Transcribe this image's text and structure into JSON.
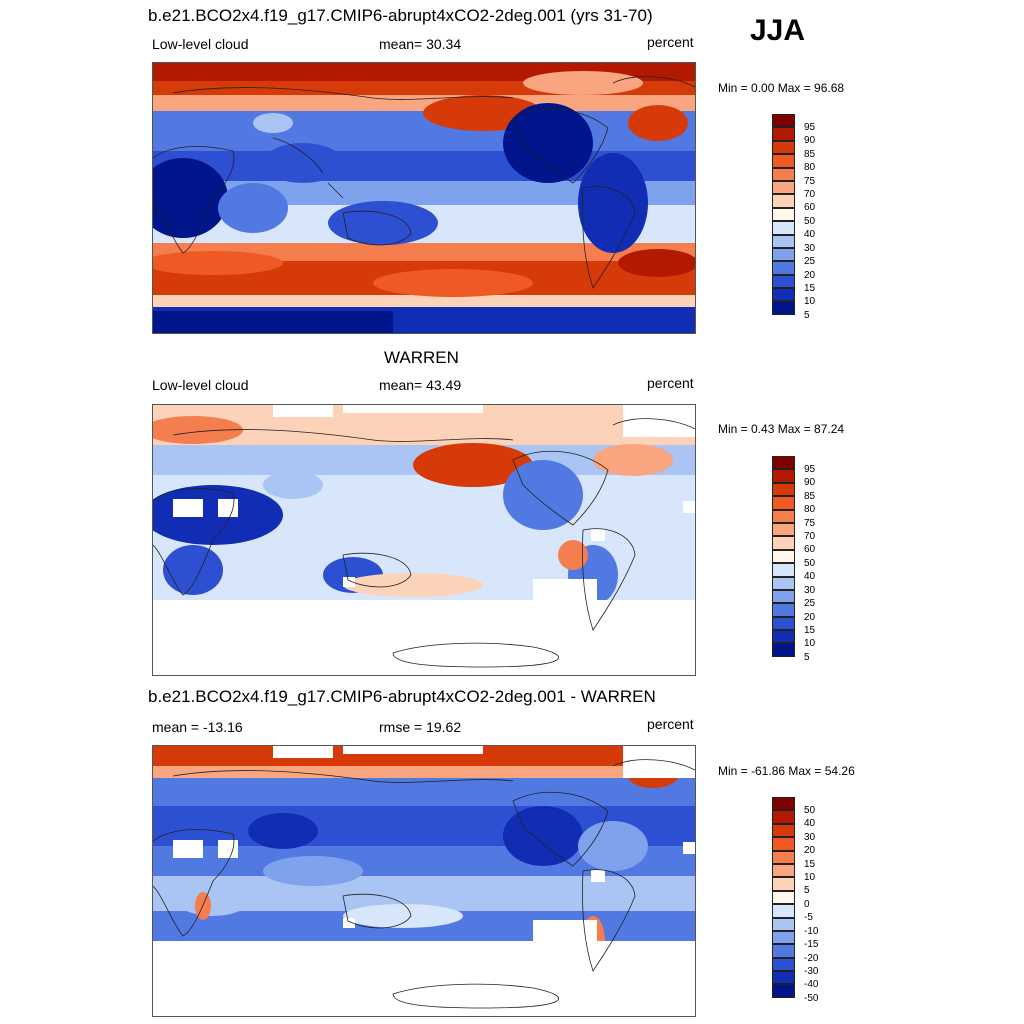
{
  "season": "JJA",
  "panels": [
    {
      "id": "model",
      "title": "b.e21.BCO2x4.f19_g17.CMIP6-abrupt4xCO2-2deg.001 (yrs 31-70)",
      "left_label": "Low-level cloud",
      "center_label": "mean=  30.34",
      "right_label": "percent",
      "minmax": "Min =   0.00 Max =  96.68",
      "colorbar_levels": [
        "95",
        "90",
        "85",
        "80",
        "75",
        "70",
        "60",
        "50",
        "40",
        "30",
        "25",
        "20",
        "15",
        "10",
        "5"
      ]
    },
    {
      "id": "obs",
      "title": "WARREN",
      "left_label": "Low-level cloud",
      "center_label": "mean=  43.49",
      "right_label": "percent",
      "minmax": "Min =   0.43 Max =  87.24",
      "colorbar_levels": [
        "95",
        "90",
        "85",
        "80",
        "75",
        "70",
        "60",
        "50",
        "40",
        "30",
        "25",
        "20",
        "15",
        "10",
        "5"
      ]
    },
    {
      "id": "diff",
      "title": "b.e21.BCO2x4.f19_g17.CMIP6-abrupt4xCO2-2deg.001 - WARREN",
      "left_label": "mean = -13.16",
      "center_label": "rmse =  19.62",
      "right_label": "percent",
      "minmax": "Min = -61.86 Max =  54.26",
      "colorbar_levels": [
        "50",
        "40",
        "30",
        "20",
        "15",
        "10",
        "5",
        "0",
        "-5",
        "-10",
        "-15",
        "-20",
        "-30",
        "-40",
        "-50"
      ]
    }
  ],
  "colors": {
    "palette": [
      "#7f0000",
      "#b21900",
      "#d63a08",
      "#ef5a24",
      "#f57e4f",
      "#f9a57f",
      "#fcd3b8",
      "#fff7ec",
      "#d7e6fa",
      "#aac5f3",
      "#7ea2ec",
      "#5278e2",
      "#2d50d2",
      "#102db3",
      "#00148c"
    ]
  }
}
